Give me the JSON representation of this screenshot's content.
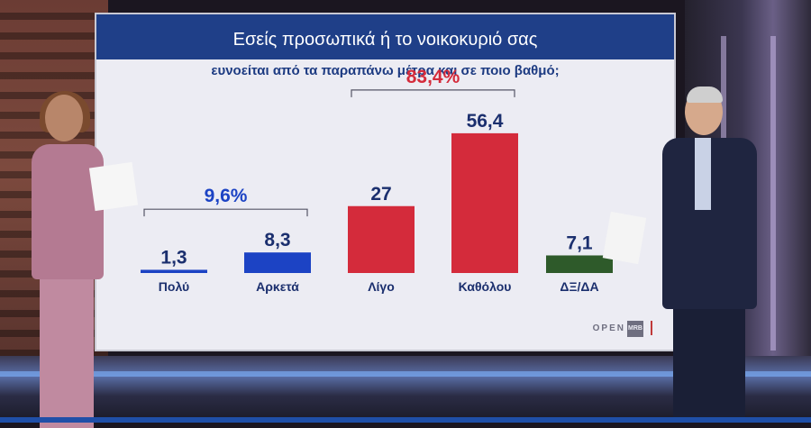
{
  "screen": {
    "title": "Εσείς προσωπικά ή το νοικοκυριό σας",
    "subtitle": "ευνοείται από τα παραπάνω μέτρα και σε ποιο βαθμό;",
    "logo_text": "OPEN",
    "logo_text_small": "MRB"
  },
  "chart_data": {
    "type": "bar",
    "title": "Εσείς προσωπικά ή το νοικοκυριό σας",
    "subtitle": "ευνοείται από τα παραπάνω μέτρα και σε ποιο βαθμό;",
    "categories": [
      "Πολύ",
      "Αρκετά",
      "Λίγο",
      "Καθόλου",
      "ΔΞ/ΔΑ"
    ],
    "values": [
      1.3,
      8.3,
      27,
      56.4,
      7.1
    ],
    "value_labels": [
      "1,3",
      "8,3",
      "27",
      "56,4",
      "7,1"
    ],
    "colors": [
      "#1c43c4",
      "#1c43c4",
      "#d42b3b",
      "#d42b3b",
      "#2e5a2a"
    ],
    "groups": [
      {
        "label": "9,6%",
        "members": [
          0,
          1
        ],
        "color": "#1c43c4"
      },
      {
        "label": "83,4%",
        "members": [
          2,
          3
        ],
        "color": "#d42b3b"
      }
    ],
    "xlabel": "",
    "ylabel": "",
    "ylim": [
      0,
      60
    ],
    "grid": false
  },
  "colors": {
    "title_bar": "#1f3f88",
    "subtitle": "#1d3b82",
    "screen_bg": "#ececf3"
  }
}
